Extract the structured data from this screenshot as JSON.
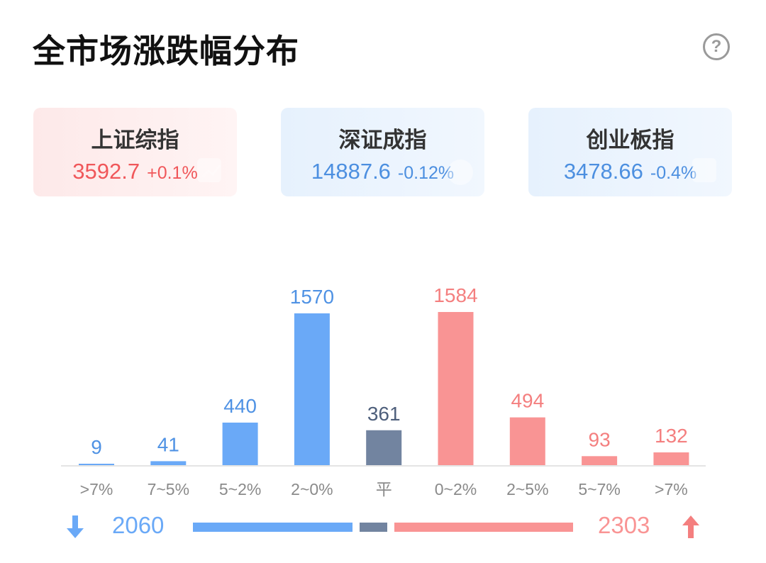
{
  "title": "全市场涨跌幅分布",
  "help_icon": "question-circle-icon",
  "help_glyph": "?",
  "indices": [
    {
      "name": "上证综指",
      "value": "3592.7",
      "change": "+0.1%",
      "trend": "up"
    },
    {
      "name": "深证成指",
      "value": "14887.6",
      "change": "-0.12%",
      "trend": "down"
    },
    {
      "name": "创业板指",
      "value": "3478.66",
      "change": "-0.4%",
      "trend": "down"
    }
  ],
  "colors": {
    "down": "#6aa9f7",
    "flat": "#7284a0",
    "up": "#f99494",
    "down_text": "#4f92e4",
    "up_text": "#f47f7f",
    "flat_text": "#4e5f7b"
  },
  "chart_data": {
    "type": "bar",
    "categories": [
      ">7%",
      "7~5%",
      "5~2%",
      "2~0%",
      "平",
      "0~2%",
      "2~5%",
      "5~7%",
      ">7%"
    ],
    "values": [
      9,
      41,
      440,
      1570,
      361,
      1584,
      494,
      93,
      132
    ],
    "groups": [
      "down",
      "down",
      "down",
      "down",
      "flat",
      "up",
      "up",
      "up",
      "up"
    ],
    "ylim": [
      0,
      1584
    ]
  },
  "summary": {
    "down_total": "2060",
    "up_total": "2303",
    "flat_total": 361,
    "down_icon": "arrow-down-icon",
    "up_icon": "arrow-up-icon"
  }
}
